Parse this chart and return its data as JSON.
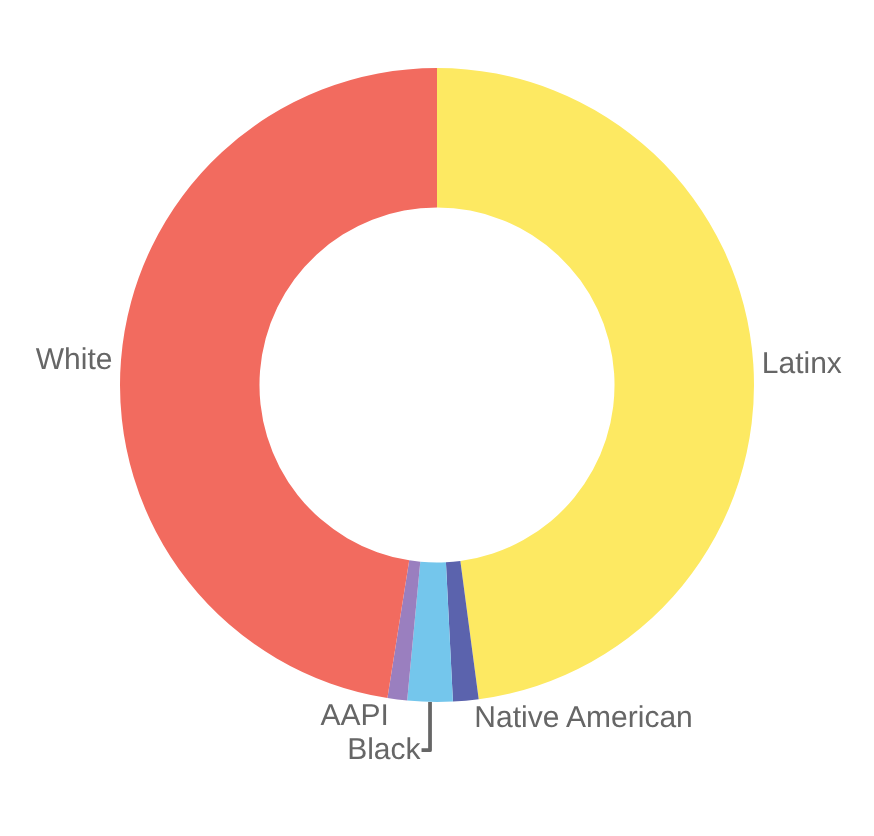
{
  "chart_data": {
    "type": "donut",
    "categories": [
      "Latinx",
      "Native American",
      "Black",
      "AAPI",
      "White"
    ],
    "values": [
      47.9,
      1.3,
      2.3,
      1.0,
      47.5
    ],
    "colors": [
      "#fde962",
      "#5b63ad",
      "#74c6ec",
      "#9a7fbf",
      "#f26b5f"
    ],
    "legend": false
  }
}
